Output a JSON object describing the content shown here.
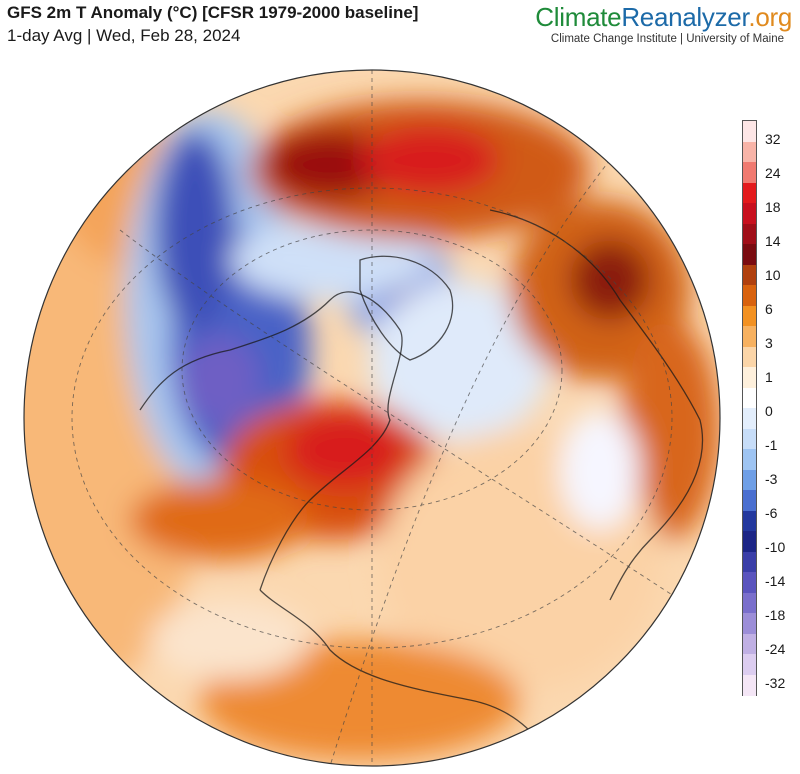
{
  "header": {
    "title": "GFS 2m T Anomaly (°C) [CFSR 1979-2000 baseline]",
    "subtitle": "1-day Avg | Wed, Feb 28, 2024"
  },
  "branding": {
    "name_part1": "Climate",
    "name_part2": "Reanalyzer",
    "name_part3": ".org",
    "tagline": "Climate Change Institute | University of Maine"
  },
  "colorbar": {
    "labels": [
      "32",
      "24",
      "18",
      "14",
      "10",
      "6",
      "3",
      "1",
      "0",
      "-1",
      "-3",
      "-6",
      "-10",
      "-14",
      "-18",
      "-24",
      "-32"
    ],
    "colors": [
      "#fde6e6",
      "#f8b4a8",
      "#f07a70",
      "#e31a1c",
      "#c8101e",
      "#a00e18",
      "#7a0b10",
      "#b0400e",
      "#d8620e",
      "#f29122",
      "#f7b160",
      "#fbd5a8",
      "#fef0dc",
      "#ffffff",
      "#e3eefc",
      "#c7ddf8",
      "#9ec4f2",
      "#6f9fe6",
      "#4a6fd0",
      "#23389e",
      "#1c2586",
      "#3a3ea8",
      "#5a54be",
      "#7a6fcc",
      "#9c8ed8",
      "#c0b0e4",
      "#dccdf0",
      "#f4e6f6"
    ]
  },
  "icons": {
    "globe": "orthographic-globe-map"
  }
}
